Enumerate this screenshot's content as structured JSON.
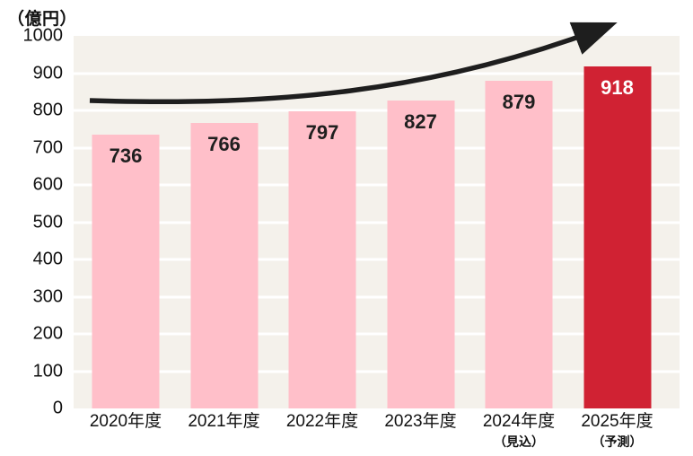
{
  "colors": {
    "bar_pink": "#FFBFC9",
    "bar_red": "#D02233",
    "plot_bg": "#F4F1EB",
    "grid": "#FFFFFF",
    "arrow": "#1E1E1E",
    "value_dark": "#1F1F1F",
    "value_light": "#FFFFFF",
    "axis_text": "#111111"
  },
  "chart_data": {
    "type": "bar",
    "title": "",
    "unit_label": "（億円）",
    "categories": [
      "2020年度",
      "2021年度",
      "2022年度",
      "2023年度",
      "2024年度",
      "2025年度"
    ],
    "category_sub_labels": [
      "",
      "",
      "",
      "",
      "（見込）",
      "（予測）"
    ],
    "values": [
      736,
      766,
      797,
      827,
      879,
      918
    ],
    "value_label_inside_bar": true,
    "highlight_index": 5,
    "ylim": [
      0,
      1000
    ],
    "ytick_step": 100,
    "grid": true,
    "legend": "none",
    "annotations": [
      "upward-trend-arrow"
    ]
  }
}
